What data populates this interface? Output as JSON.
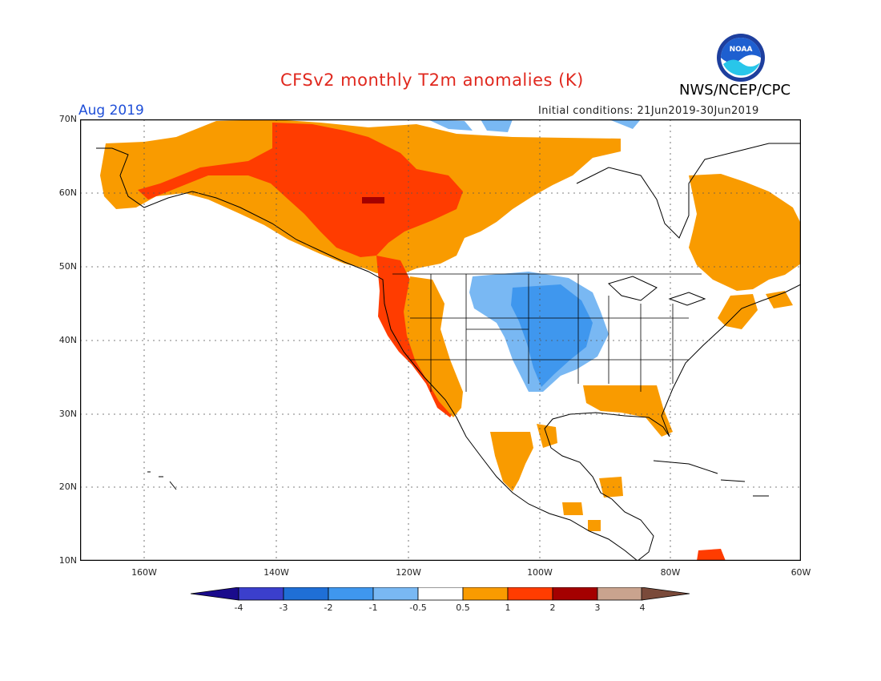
{
  "header": {
    "title": "CFSv2 monthly T2m anomalies (K)",
    "agency": "NWS/NCEP/CPC",
    "period": "Aug 2019",
    "initial_conditions": "Initial conditions: 21Jun2019-30Jun2019",
    "logo_text": "NOAA"
  },
  "axes": {
    "lat_labels": [
      "70N",
      "60N",
      "50N",
      "40N",
      "30N",
      "20N",
      "10N"
    ],
    "lon_labels": [
      "160W",
      "140W",
      "120W",
      "100W",
      "80W",
      "60W"
    ]
  },
  "colorbar": {
    "labels": [
      "-4",
      "-3",
      "-2",
      "-1",
      "-0.5",
      "0.5",
      "1",
      "2",
      "3",
      "4"
    ],
    "colors": [
      "#1a0b8c",
      "#3b3fcc",
      "#1f6fd6",
      "#3f97ee",
      "#79b8f3",
      "#ffffff",
      "#f99b00",
      "#ff3c00",
      "#a40000",
      "#c9a38e",
      "#7a4a3a"
    ]
  },
  "legend_colors": {
    "ocean": "#ffffff",
    "land": "#ffffff",
    "coast": "#000000",
    "warm_1": "#f99b00",
    "warm_2": "#ff3c00",
    "warm_3": "#a40000",
    "cool_1": "#79b8f3",
    "cool_2": "#3f97ee"
  }
}
